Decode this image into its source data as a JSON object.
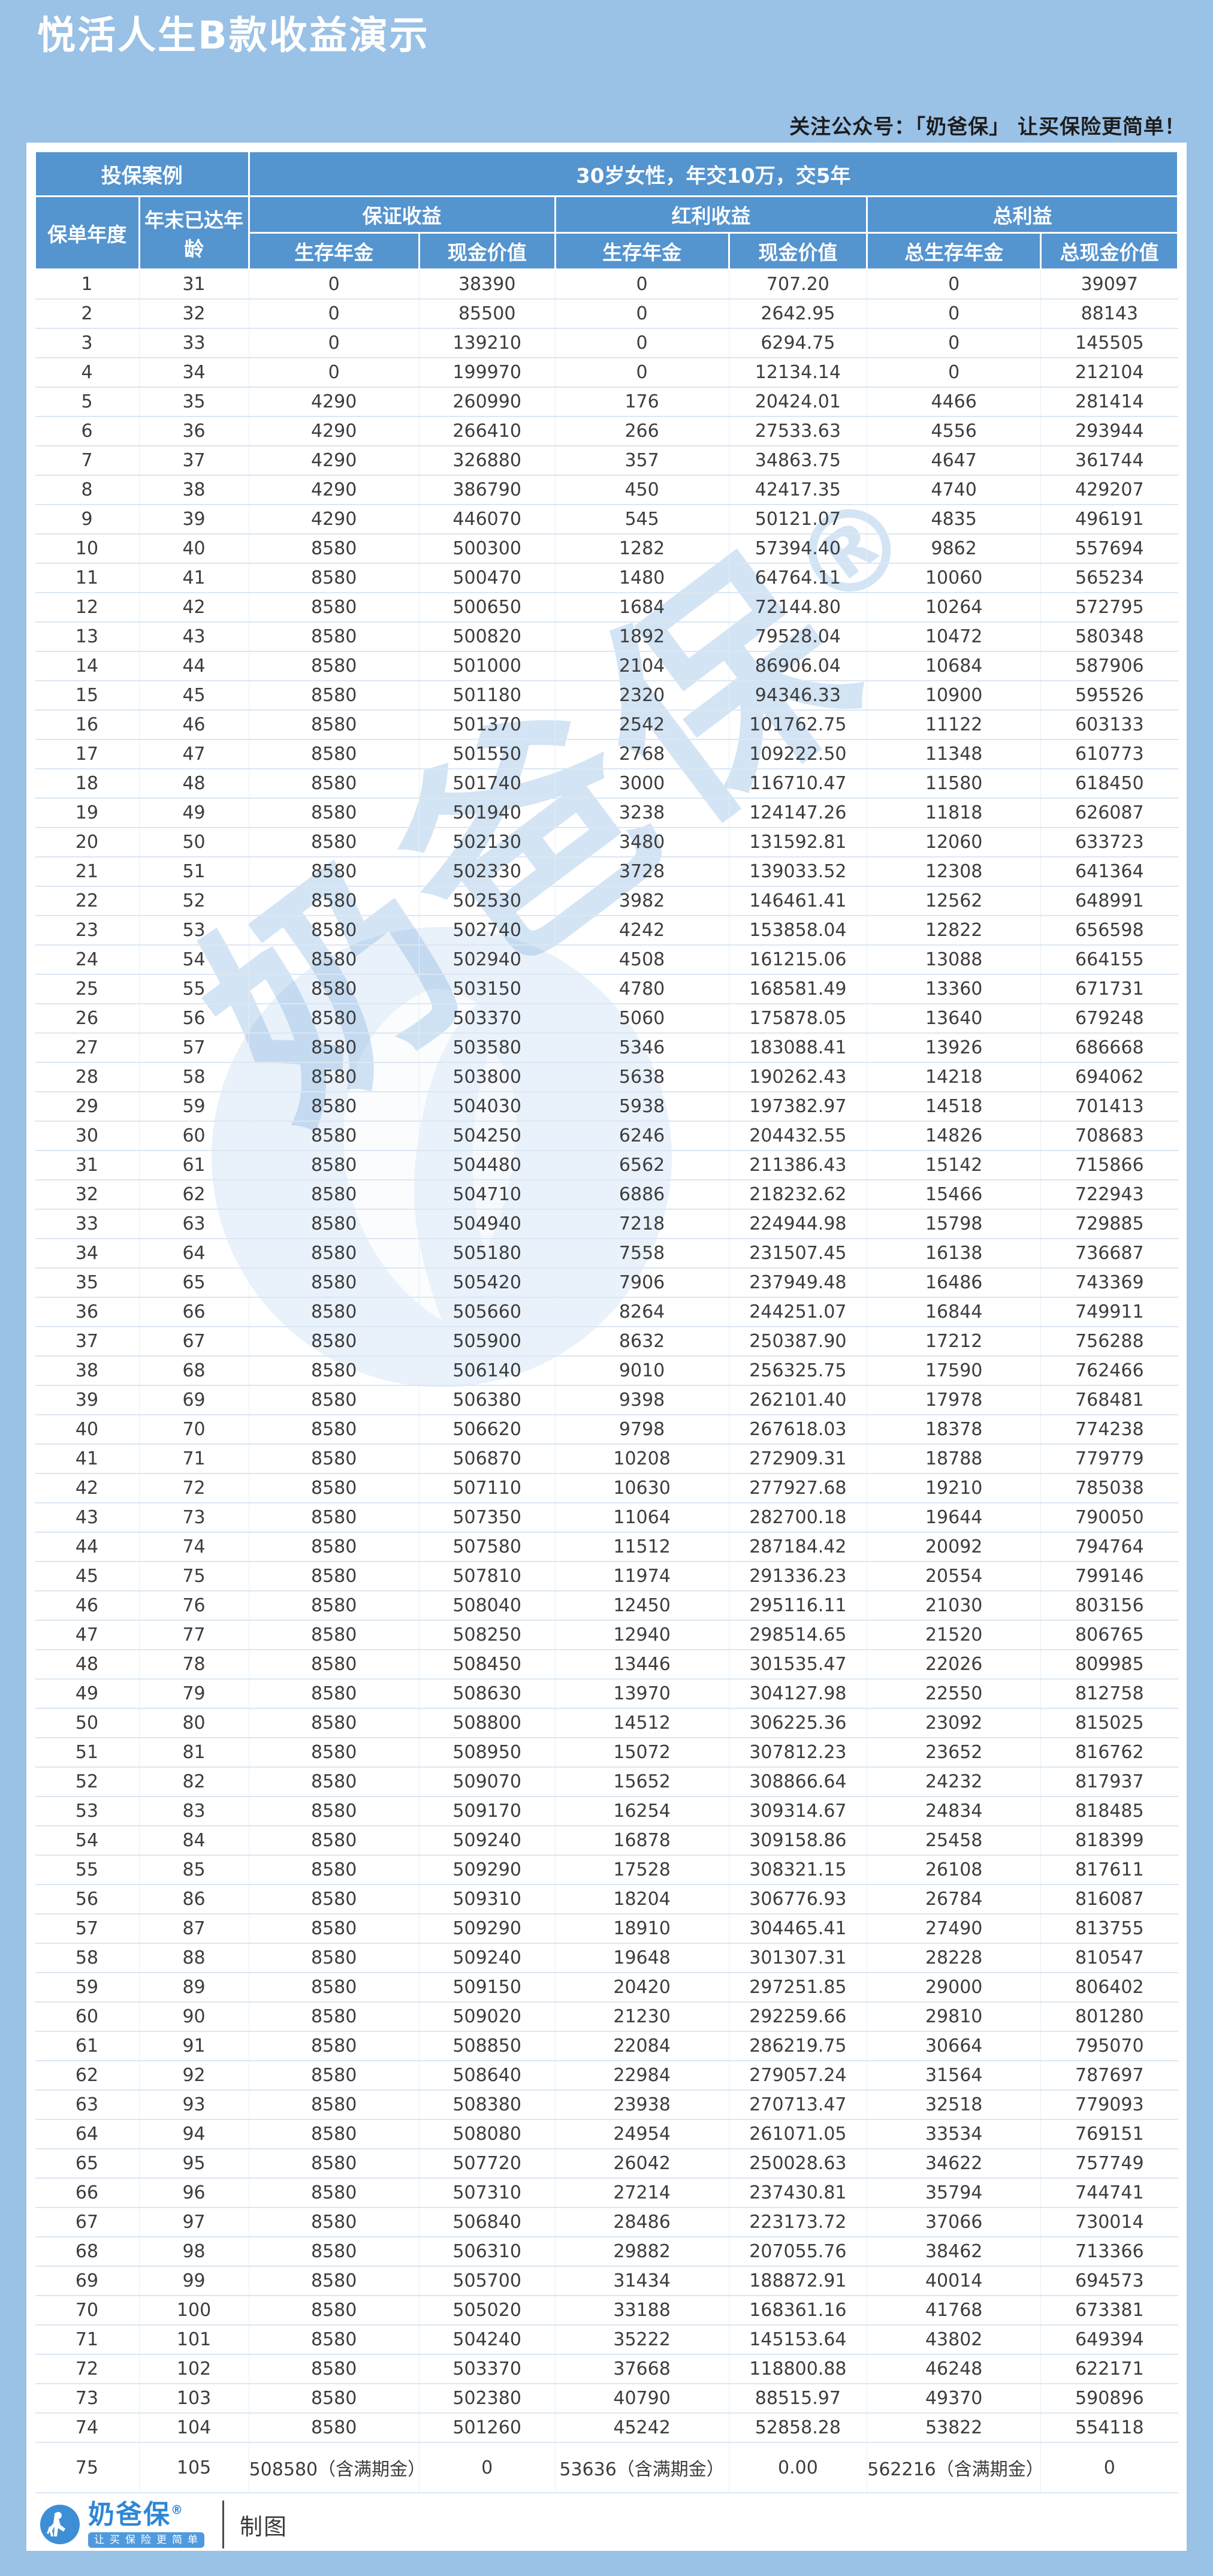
{
  "colors": {
    "page_background": "#9ac1e6",
    "header_blue": "#5494cf",
    "body_text": "#3d3d3d",
    "brand_blue": "#2f86d6",
    "watermark_blue": "rgba(118,170,222,0.32)"
  },
  "header": {
    "title": "悦活人生B款收益演示",
    "slogan": "关注公众号：「奶爸保」  让买保险更简单！"
  },
  "watermark": {
    "text": "奶爸保",
    "reg": "®"
  },
  "table": {
    "case_label": "投保案例",
    "case_value": "30岁女性，年交10万，交5年",
    "col_policy_year": "保单年度",
    "col_age": "年末已达年龄",
    "group_guaranteed": "保证收益",
    "group_dividend": "红利收益",
    "group_total": "总利益",
    "sub_g_annuity": "生存年金",
    "sub_g_cash": "现金价值",
    "sub_d_annuity": "生存年金",
    "sub_d_cash": "现金价值",
    "sub_t_annuity": "总生存年金",
    "sub_t_cash": "总现金价值",
    "rows": [
      [
        "1",
        "31",
        "0",
        "38390",
        "0",
        "707.20",
        "0",
        "39097"
      ],
      [
        "2",
        "32",
        "0",
        "85500",
        "0",
        "2642.95",
        "0",
        "88143"
      ],
      [
        "3",
        "33",
        "0",
        "139210",
        "0",
        "6294.75",
        "0",
        "145505"
      ],
      [
        "4",
        "34",
        "0",
        "199970",
        "0",
        "12134.14",
        "0",
        "212104"
      ],
      [
        "5",
        "35",
        "4290",
        "260990",
        "176",
        "20424.01",
        "4466",
        "281414"
      ],
      [
        "6",
        "36",
        "4290",
        "266410",
        "266",
        "27533.63",
        "4556",
        "293944"
      ],
      [
        "7",
        "37",
        "4290",
        "326880",
        "357",
        "34863.75",
        "4647",
        "361744"
      ],
      [
        "8",
        "38",
        "4290",
        "386790",
        "450",
        "42417.35",
        "4740",
        "429207"
      ],
      [
        "9",
        "39",
        "4290",
        "446070",
        "545",
        "50121.07",
        "4835",
        "496191"
      ],
      [
        "10",
        "40",
        "8580",
        "500300",
        "1282",
        "57394.40",
        "9862",
        "557694"
      ],
      [
        "11",
        "41",
        "8580",
        "500470",
        "1480",
        "64764.11",
        "10060",
        "565234"
      ],
      [
        "12",
        "42",
        "8580",
        "500650",
        "1684",
        "72144.80",
        "10264",
        "572795"
      ],
      [
        "13",
        "43",
        "8580",
        "500820",
        "1892",
        "79528.04",
        "10472",
        "580348"
      ],
      [
        "14",
        "44",
        "8580",
        "501000",
        "2104",
        "86906.04",
        "10684",
        "587906"
      ],
      [
        "15",
        "45",
        "8580",
        "501180",
        "2320",
        "94346.33",
        "10900",
        "595526"
      ],
      [
        "16",
        "46",
        "8580",
        "501370",
        "2542",
        "101762.75",
        "11122",
        "603133"
      ],
      [
        "17",
        "47",
        "8580",
        "501550",
        "2768",
        "109222.50",
        "11348",
        "610773"
      ],
      [
        "18",
        "48",
        "8580",
        "501740",
        "3000",
        "116710.47",
        "11580",
        "618450"
      ],
      [
        "19",
        "49",
        "8580",
        "501940",
        "3238",
        "124147.26",
        "11818",
        "626087"
      ],
      [
        "20",
        "50",
        "8580",
        "502130",
        "3480",
        "131592.81",
        "12060",
        "633723"
      ],
      [
        "21",
        "51",
        "8580",
        "502330",
        "3728",
        "139033.52",
        "12308",
        "641364"
      ],
      [
        "22",
        "52",
        "8580",
        "502530",
        "3982",
        "146461.41",
        "12562",
        "648991"
      ],
      [
        "23",
        "53",
        "8580",
        "502740",
        "4242",
        "153858.04",
        "12822",
        "656598"
      ],
      [
        "24",
        "54",
        "8580",
        "502940",
        "4508",
        "161215.06",
        "13088",
        "664155"
      ],
      [
        "25",
        "55",
        "8580",
        "503150",
        "4780",
        "168581.49",
        "13360",
        "671731"
      ],
      [
        "26",
        "56",
        "8580",
        "503370",
        "5060",
        "175878.05",
        "13640",
        "679248"
      ],
      [
        "27",
        "57",
        "8580",
        "503580",
        "5346",
        "183088.41",
        "13926",
        "686668"
      ],
      [
        "28",
        "58",
        "8580",
        "503800",
        "5638",
        "190262.43",
        "14218",
        "694062"
      ],
      [
        "29",
        "59",
        "8580",
        "504030",
        "5938",
        "197382.97",
        "14518",
        "701413"
      ],
      [
        "30",
        "60",
        "8580",
        "504250",
        "6246",
        "204432.55",
        "14826",
        "708683"
      ],
      [
        "31",
        "61",
        "8580",
        "504480",
        "6562",
        "211386.43",
        "15142",
        "715866"
      ],
      [
        "32",
        "62",
        "8580",
        "504710",
        "6886",
        "218232.62",
        "15466",
        "722943"
      ],
      [
        "33",
        "63",
        "8580",
        "504940",
        "7218",
        "224944.98",
        "15798",
        "729885"
      ],
      [
        "34",
        "64",
        "8580",
        "505180",
        "7558",
        "231507.45",
        "16138",
        "736687"
      ],
      [
        "35",
        "65",
        "8580",
        "505420",
        "7906",
        "237949.48",
        "16486",
        "743369"
      ],
      [
        "36",
        "66",
        "8580",
        "505660",
        "8264",
        "244251.07",
        "16844",
        "749911"
      ],
      [
        "37",
        "67",
        "8580",
        "505900",
        "8632",
        "250387.90",
        "17212",
        "756288"
      ],
      [
        "38",
        "68",
        "8580",
        "506140",
        "9010",
        "256325.75",
        "17590",
        "762466"
      ],
      [
        "39",
        "69",
        "8580",
        "506380",
        "9398",
        "262101.40",
        "17978",
        "768481"
      ],
      [
        "40",
        "70",
        "8580",
        "506620",
        "9798",
        "267618.03",
        "18378",
        "774238"
      ],
      [
        "41",
        "71",
        "8580",
        "506870",
        "10208",
        "272909.31",
        "18788",
        "779779"
      ],
      [
        "42",
        "72",
        "8580",
        "507110",
        "10630",
        "277927.68",
        "19210",
        "785038"
      ],
      [
        "43",
        "73",
        "8580",
        "507350",
        "11064",
        "282700.18",
        "19644",
        "790050"
      ],
      [
        "44",
        "74",
        "8580",
        "507580",
        "11512",
        "287184.42",
        "20092",
        "794764"
      ],
      [
        "45",
        "75",
        "8580",
        "507810",
        "11974",
        "291336.23",
        "20554",
        "799146"
      ],
      [
        "46",
        "76",
        "8580",
        "508040",
        "12450",
        "295116.11",
        "21030",
        "803156"
      ],
      [
        "47",
        "77",
        "8580",
        "508250",
        "12940",
        "298514.65",
        "21520",
        "806765"
      ],
      [
        "48",
        "78",
        "8580",
        "508450",
        "13446",
        "301535.47",
        "22026",
        "809985"
      ],
      [
        "49",
        "79",
        "8580",
        "508630",
        "13970",
        "304127.98",
        "22550",
        "812758"
      ],
      [
        "50",
        "80",
        "8580",
        "508800",
        "14512",
        "306225.36",
        "23092",
        "815025"
      ],
      [
        "51",
        "81",
        "8580",
        "508950",
        "15072",
        "307812.23",
        "23652",
        "816762"
      ],
      [
        "52",
        "82",
        "8580",
        "509070",
        "15652",
        "308866.64",
        "24232",
        "817937"
      ],
      [
        "53",
        "83",
        "8580",
        "509170",
        "16254",
        "309314.67",
        "24834",
        "818485"
      ],
      [
        "54",
        "84",
        "8580",
        "509240",
        "16878",
        "309158.86",
        "25458",
        "818399"
      ],
      [
        "55",
        "85",
        "8580",
        "509290",
        "17528",
        "308321.15",
        "26108",
        "817611"
      ],
      [
        "56",
        "86",
        "8580",
        "509310",
        "18204",
        "306776.93",
        "26784",
        "816087"
      ],
      [
        "57",
        "87",
        "8580",
        "509290",
        "18910",
        "304465.41",
        "27490",
        "813755"
      ],
      [
        "58",
        "88",
        "8580",
        "509240",
        "19648",
        "301307.31",
        "28228",
        "810547"
      ],
      [
        "59",
        "89",
        "8580",
        "509150",
        "20420",
        "297251.85",
        "29000",
        "806402"
      ],
      [
        "60",
        "90",
        "8580",
        "509020",
        "21230",
        "292259.66",
        "29810",
        "801280"
      ],
      [
        "61",
        "91",
        "8580",
        "508850",
        "22084",
        "286219.75",
        "30664",
        "795070"
      ],
      [
        "62",
        "92",
        "8580",
        "508640",
        "22984",
        "279057.24",
        "31564",
        "787697"
      ],
      [
        "63",
        "93",
        "8580",
        "508380",
        "23938",
        "270713.47",
        "32518",
        "779093"
      ],
      [
        "64",
        "94",
        "8580",
        "508080",
        "24954",
        "261071.05",
        "33534",
        "769151"
      ],
      [
        "65",
        "95",
        "8580",
        "507720",
        "26042",
        "250028.63",
        "34622",
        "757749"
      ],
      [
        "66",
        "96",
        "8580",
        "507310",
        "27214",
        "237430.81",
        "35794",
        "744741"
      ],
      [
        "67",
        "97",
        "8580",
        "506840",
        "28486",
        "223173.72",
        "37066",
        "730014"
      ],
      [
        "68",
        "98",
        "8580",
        "506310",
        "29882",
        "207055.76",
        "38462",
        "713366"
      ],
      [
        "69",
        "99",
        "8580",
        "505700",
        "31434",
        "188872.91",
        "40014",
        "694573"
      ],
      [
        "70",
        "100",
        "8580",
        "505020",
        "33188",
        "168361.16",
        "41768",
        "673381"
      ],
      [
        "71",
        "101",
        "8580",
        "504240",
        "35222",
        "145153.64",
        "43802",
        "649394"
      ],
      [
        "72",
        "102",
        "8580",
        "503370",
        "37668",
        "118800.88",
        "46248",
        "622171"
      ],
      [
        "73",
        "103",
        "8580",
        "502380",
        "40790",
        "88515.97",
        "49370",
        "590896"
      ],
      [
        "74",
        "104",
        "8580",
        "501260",
        "45242",
        "52858.28",
        "53822",
        "554118"
      ],
      [
        "75",
        "105",
        "508580（含满期金）",
        "0",
        "53636（含满期金）",
        "0.00",
        "562216（含满期金）",
        "0"
      ]
    ]
  },
  "footer": {
    "brand": "奶爸保",
    "reg": "®",
    "tagline": "让买保险更简单",
    "maker": "制图"
  }
}
